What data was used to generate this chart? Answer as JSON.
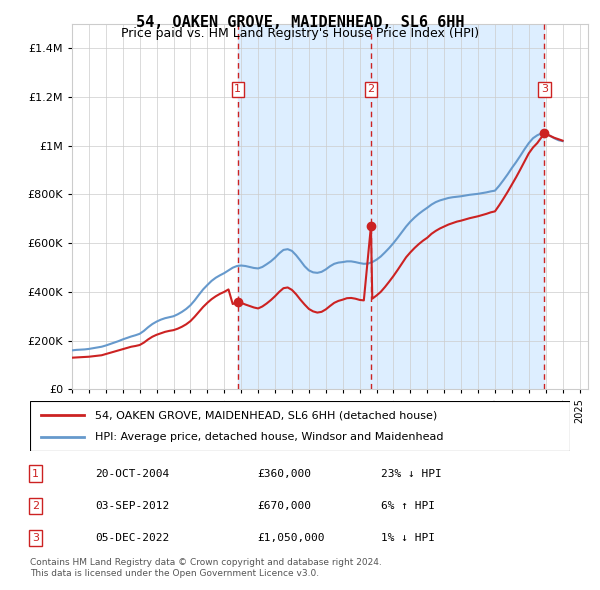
{
  "title": "54, OAKEN GROVE, MAIDENHEAD, SL6 6HH",
  "subtitle": "Price paid vs. HM Land Registry's House Price Index (HPI)",
  "legend_line1": "54, OAKEN GROVE, MAIDENHEAD, SL6 6HH (detached house)",
  "legend_line2": "HPI: Average price, detached house, Windsor and Maidenhead",
  "footer1": "Contains HM Land Registry data © Crown copyright and database right 2024.",
  "footer2": "This data is licensed under the Open Government Licence v3.0.",
  "transactions": [
    {
      "num": 1,
      "date": "20-OCT-2004",
      "price": "£360,000",
      "hpi": "23% ↓ HPI",
      "x": 2004.8
    },
    {
      "num": 2,
      "date": "03-SEP-2012",
      "price": "£670,000",
      "hpi": "6% ↑ HPI",
      "x": 2012.67
    },
    {
      "num": 3,
      "date": "05-DEC-2022",
      "price": "£1,050,000",
      "hpi": "1% ↓ HPI",
      "x": 2022.92
    }
  ],
  "hpi_color": "#6699cc",
  "price_color": "#cc2222",
  "vline_color": "#cc2222",
  "shade_color": "#ddeeff",
  "grid_color": "#cccccc",
  "bg_color": "#ffffff",
  "ylim": [
    0,
    1500000
  ],
  "xlim_start": 1995.0,
  "xlim_end": 2025.5,
  "hpi_data": {
    "years": [
      1995.0,
      1995.25,
      1995.5,
      1995.75,
      1996.0,
      1996.25,
      1996.5,
      1996.75,
      1997.0,
      1997.25,
      1997.5,
      1997.75,
      1998.0,
      1998.25,
      1998.5,
      1998.75,
      1999.0,
      1999.25,
      1999.5,
      1999.75,
      2000.0,
      2000.25,
      2000.5,
      2000.75,
      2001.0,
      2001.25,
      2001.5,
      2001.75,
      2002.0,
      2002.25,
      2002.5,
      2002.75,
      2003.0,
      2003.25,
      2003.5,
      2003.75,
      2004.0,
      2004.25,
      2004.5,
      2004.75,
      2005.0,
      2005.25,
      2005.5,
      2005.75,
      2006.0,
      2006.25,
      2006.5,
      2006.75,
      2007.0,
      2007.25,
      2007.5,
      2007.75,
      2008.0,
      2008.25,
      2008.5,
      2008.75,
      2009.0,
      2009.25,
      2009.5,
      2009.75,
      2010.0,
      2010.25,
      2010.5,
      2010.75,
      2011.0,
      2011.25,
      2011.5,
      2011.75,
      2012.0,
      2012.25,
      2012.5,
      2012.75,
      2013.0,
      2013.25,
      2013.5,
      2013.75,
      2014.0,
      2014.25,
      2014.5,
      2014.75,
      2015.0,
      2015.25,
      2015.5,
      2015.75,
      2016.0,
      2016.25,
      2016.5,
      2016.75,
      2017.0,
      2017.25,
      2017.5,
      2017.75,
      2018.0,
      2018.25,
      2018.5,
      2018.75,
      2019.0,
      2019.25,
      2019.5,
      2019.75,
      2020.0,
      2020.25,
      2020.5,
      2020.75,
      2021.0,
      2021.25,
      2021.5,
      2021.75,
      2022.0,
      2022.25,
      2022.5,
      2022.75,
      2023.0,
      2023.25,
      2023.5,
      2023.75,
      2024.0
    ],
    "values": [
      160000,
      162000,
      163000,
      164000,
      166000,
      169000,
      172000,
      175000,
      180000,
      186000,
      192000,
      198000,
      205000,
      211000,
      217000,
      222000,
      228000,
      240000,
      255000,
      268000,
      278000,
      286000,
      292000,
      296000,
      300000,
      308000,
      318000,
      330000,
      345000,
      365000,
      388000,
      410000,
      428000,
      445000,
      458000,
      468000,
      477000,
      488000,
      499000,
      506000,
      508000,
      506000,
      502000,
      498000,
      496000,
      502000,
      513000,
      525000,
      540000,
      558000,
      572000,
      575000,
      568000,
      550000,
      528000,
      505000,
      488000,
      480000,
      478000,
      482000,
      492000,
      505000,
      515000,
      520000,
      522000,
      525000,
      525000,
      522000,
      518000,
      515000,
      516000,
      522000,
      532000,
      545000,
      562000,
      580000,
      600000,
      622000,
      645000,
      668000,
      688000,
      705000,
      720000,
      733000,
      745000,
      758000,
      768000,
      775000,
      780000,
      785000,
      788000,
      790000,
      792000,
      795000,
      798000,
      800000,
      802000,
      805000,
      808000,
      812000,
      815000,
      835000,
      858000,
      882000,
      908000,
      932000,
      958000,
      985000,
      1010000,
      1030000,
      1042000,
      1050000,
      1048000,
      1040000,
      1030000,
      1022000,
      1018000
    ]
  },
  "price_data": {
    "years": [
      1995.0,
      1995.25,
      1995.5,
      1995.75,
      1996.0,
      1996.25,
      1996.5,
      1996.75,
      1997.0,
      1997.25,
      1997.5,
      1997.75,
      1998.0,
      1998.25,
      1998.5,
      1998.75,
      1999.0,
      1999.25,
      1999.5,
      1999.75,
      2000.0,
      2000.25,
      2000.5,
      2000.75,
      2001.0,
      2001.25,
      2001.5,
      2001.75,
      2002.0,
      2002.25,
      2002.5,
      2002.75,
      2003.0,
      2003.25,
      2003.5,
      2003.75,
      2004.0,
      2004.25,
      2004.5,
      2004.8,
      2005.0,
      2005.25,
      2005.5,
      2005.75,
      2006.0,
      2006.25,
      2006.5,
      2006.75,
      2007.0,
      2007.25,
      2007.5,
      2007.75,
      2008.0,
      2008.25,
      2008.5,
      2008.75,
      2009.0,
      2009.25,
      2009.5,
      2009.75,
      2010.0,
      2010.25,
      2010.5,
      2010.75,
      2011.0,
      2011.25,
      2011.5,
      2011.75,
      2012.0,
      2012.25,
      2012.67,
      2012.75,
      2013.0,
      2013.25,
      2013.5,
      2013.75,
      2014.0,
      2014.25,
      2014.5,
      2014.75,
      2015.0,
      2015.25,
      2015.5,
      2015.75,
      2016.0,
      2016.25,
      2016.5,
      2016.75,
      2017.0,
      2017.25,
      2017.5,
      2017.75,
      2018.0,
      2018.25,
      2018.5,
      2018.75,
      2019.0,
      2019.25,
      2019.5,
      2019.75,
      2020.0,
      2020.25,
      2020.5,
      2020.75,
      2021.0,
      2021.25,
      2021.5,
      2021.75,
      2022.0,
      2022.25,
      2022.5,
      2022.92,
      2023.0,
      2023.25,
      2023.5,
      2023.75,
      2024.0
    ],
    "values": [
      130000,
      131000,
      132000,
      133000,
      134000,
      136000,
      138000,
      140000,
      145000,
      150000,
      155000,
      160000,
      165000,
      170000,
      175000,
      178000,
      182000,
      192000,
      205000,
      216000,
      224000,
      230000,
      236000,
      240000,
      243000,
      249000,
      257000,
      267000,
      280000,
      298000,
      318000,
      338000,
      355000,
      370000,
      382000,
      392000,
      400000,
      410000,
      350000,
      360000,
      355000,
      348000,
      342000,
      336000,
      332000,
      340000,
      352000,
      366000,
      382000,
      400000,
      415000,
      418000,
      408000,
      390000,
      368000,
      348000,
      330000,
      320000,
      315000,
      318000,
      328000,
      342000,
      355000,
      363000,
      368000,
      374000,
      375000,
      372000,
      367000,
      365000,
      670000,
      372000,
      385000,
      400000,
      420000,
      442000,
      465000,
      490000,
      516000,
      542000,
      562000,
      580000,
      596000,
      610000,
      622000,
      638000,
      650000,
      660000,
      668000,
      676000,
      682000,
      688000,
      692000,
      697000,
      702000,
      706000,
      710000,
      715000,
      720000,
      726000,
      730000,
      755000,
      782000,
      810000,
      840000,
      870000,
      902000,
      935000,
      968000,
      992000,
      1010000,
      1050000,
      1048000,
      1040000,
      1032000,
      1026000,
      1020000
    ]
  }
}
